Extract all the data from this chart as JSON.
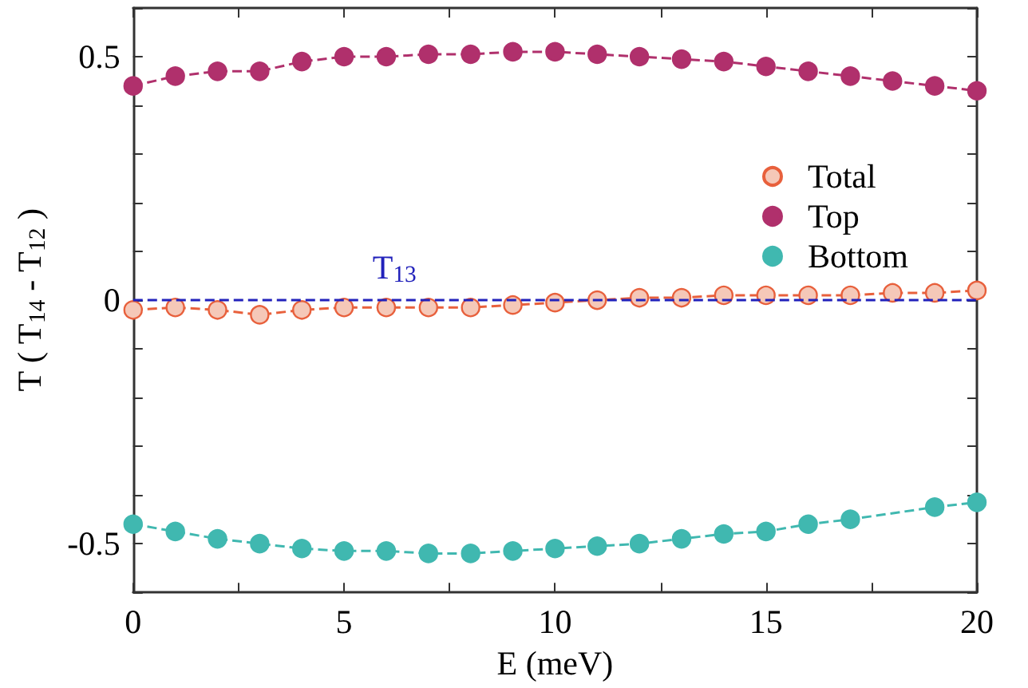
{
  "chart_data": {
    "type": "line",
    "xlabel": "E (meV)",
    "ylabel": "T ( T$_{14}$ - T$_{12}$ )",
    "x": [
      0,
      1,
      2,
      3,
      4,
      5,
      6,
      7,
      8,
      9,
      10,
      11,
      12,
      13,
      14,
      15,
      16,
      17,
      18,
      19,
      20
    ],
    "series": [
      {
        "name": "Total",
        "color": "#e8603c",
        "values": [
          -0.02,
          -0.015,
          -0.02,
          -0.03,
          -0.02,
          -0.015,
          -0.015,
          -0.015,
          -0.015,
          -0.01,
          -0.005,
          0,
          0.005,
          0.005,
          0.01,
          0.01,
          0.01,
          0.01,
          0.015,
          0.015,
          0.02
        ]
      },
      {
        "name": "Top",
        "color": "#b0306c",
        "values": [
          0.44,
          0.46,
          0.47,
          0.47,
          0.49,
          0.5,
          0.5,
          0.505,
          0.505,
          0.51,
          0.51,
          0.505,
          0.5,
          0.495,
          0.49,
          0.48,
          0.47,
          0.46,
          0.45,
          0.44,
          0.43
        ]
      },
      {
        "name": "Bottom",
        "color": "#40b8b0",
        "x": [
          0,
          1,
          2,
          3,
          4,
          5,
          6,
          7,
          8,
          9,
          10,
          11,
          12,
          13,
          14,
          15,
          16,
          17,
          19,
          20
        ],
        "values": [
          -0.46,
          -0.475,
          -0.49,
          -0.5,
          -0.51,
          -0.515,
          -0.515,
          -0.52,
          -0.52,
          -0.515,
          -0.51,
          -0.505,
          -0.5,
          -0.49,
          -0.48,
          -0.475,
          -0.46,
          -0.45,
          -0.425,
          -0.415
        ]
      }
    ],
    "xlim": [
      0,
      20
    ],
    "xticks": [
      0,
      {
        "value": 2.5,
        "label": null
      },
      5,
      {
        "value": 7.5,
        "label": null
      },
      10,
      {
        "value": 12.5,
        "label": null
      },
      15,
      {
        "value": 17.5,
        "label": null
      },
      20
    ],
    "ylim": [
      -0.6,
      0.6
    ],
    "yticks": [
      {
        "value": -0.6,
        "label": null
      },
      -0.5,
      {
        "value": -0.4,
        "label": null
      },
      {
        "value": -0.3,
        "label": null
      },
      {
        "value": -0.2,
        "label": null
      },
      {
        "value": -0.1,
        "label": null
      },
      0,
      {
        "value": 0.1,
        "label": null
      },
      {
        "value": 0.2,
        "label": null
      },
      {
        "value": 0.3,
        "label": null
      },
      {
        "value": 0.4,
        "label": null
      },
      0.5,
      {
        "value": 0.6,
        "label": null
      }
    ],
    "ref_lines": [
      {
        "axis": "y",
        "value": 0,
        "label": "T$_{13}$",
        "color": "#2222bb",
        "line_style": "dashed"
      }
    ],
    "grid": false,
    "legend": "top right",
    "marker": "circle",
    "line_style": "dashed"
  }
}
